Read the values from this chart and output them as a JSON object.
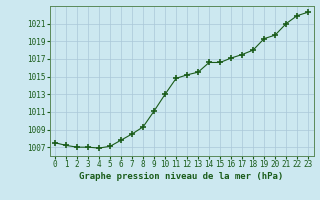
{
  "x": [
    0,
    1,
    2,
    3,
    4,
    5,
    6,
    7,
    8,
    9,
    10,
    11,
    12,
    13,
    14,
    15,
    16,
    17,
    18,
    19,
    20,
    21,
    22,
    23
  ],
  "y": [
    1007.5,
    1007.2,
    1007.0,
    1007.0,
    1006.9,
    1007.1,
    1007.8,
    1008.5,
    1009.3,
    1011.1,
    1013.0,
    1014.8,
    1015.2,
    1015.5,
    1016.6,
    1016.6,
    1017.1,
    1017.5,
    1018.0,
    1019.3,
    1019.7,
    1021.0,
    1021.9,
    1022.3
  ],
  "line_color": "#1a5c1a",
  "marker": "+",
  "marker_size": 5,
  "marker_linewidth": 1.2,
  "bg_color": "#cce8f0",
  "grid_color": "#aac8d8",
  "xlabel": "Graphe pression niveau de la mer (hPa)",
  "xlabel_color": "#1a5c1a",
  "xlabel_fontsize": 6.5,
  "tick_label_color": "#1a5c1a",
  "tick_fontsize": 5.5,
  "ylim": [
    1006.0,
    1023.0
  ],
  "yticks": [
    1007,
    1009,
    1011,
    1013,
    1015,
    1017,
    1019,
    1021
  ],
  "xlim": [
    -0.5,
    23.5
  ],
  "xticks": [
    0,
    1,
    2,
    3,
    4,
    5,
    6,
    7,
    8,
    9,
    10,
    11,
    12,
    13,
    14,
    15,
    16,
    17,
    18,
    19,
    20,
    21,
    22,
    23
  ],
  "spine_color": "#5a8a5a"
}
